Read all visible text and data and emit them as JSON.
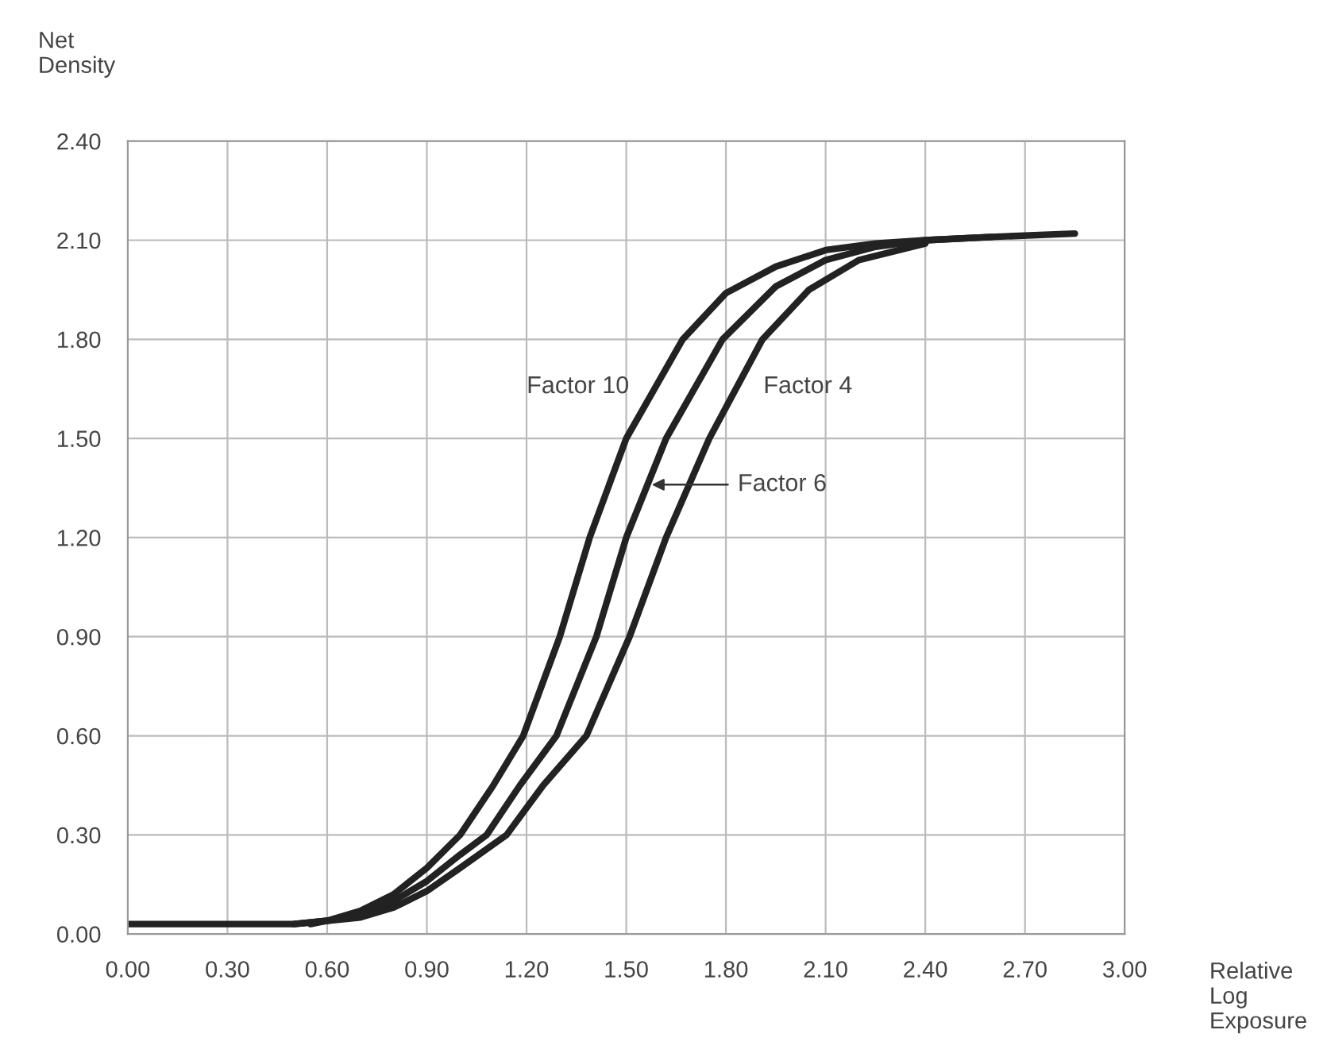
{
  "chart_data": {
    "type": "line",
    "xlabel": "Relative\nLog\nExposure",
    "ylabel": "Net\nDensity",
    "xlim": [
      0,
      3.0
    ],
    "ylim": [
      0,
      2.4
    ],
    "xticks": [
      {
        "value": 0,
        "label": "0.00"
      },
      {
        "value": 0.3,
        "label": "0.30"
      },
      {
        "value": 0.6,
        "label": "0.60"
      },
      {
        "value": 0.9,
        "label": "0.90"
      },
      {
        "value": 1.2,
        "label": "1.20"
      },
      {
        "value": 1.5,
        "label": "1.50"
      },
      {
        "value": 1.8,
        "label": "1.80"
      },
      {
        "value": 2.1,
        "label": "2.10"
      },
      {
        "value": 2.4,
        "label": "2.40"
      },
      {
        "value": 2.7,
        "label": "2.70"
      },
      {
        "value": 3.0,
        "label": "3.00"
      }
    ],
    "yticks": [
      {
        "value": 0,
        "label": "0.00"
      },
      {
        "value": 0.3,
        "label": "0.30"
      },
      {
        "value": 0.6,
        "label": "0.60"
      },
      {
        "value": 0.9,
        "label": "0.90"
      },
      {
        "value": 1.2,
        "label": "1.20"
      },
      {
        "value": 1.5,
        "label": "1.50"
      },
      {
        "value": 1.8,
        "label": "1.80"
      },
      {
        "value": 2.1,
        "label": "2.10"
      },
      {
        "value": 2.4,
        "label": "2.40"
      }
    ],
    "grid": true,
    "legend": false,
    "marker": "none",
    "line_style": "solid",
    "series": [
      {
        "name": "Factor 10",
        "color": "#222222",
        "x": [
          0,
          0.3,
          0.5,
          0.6,
          0.7,
          0.8,
          0.9,
          1.0,
          1.1,
          1.19,
          1.3,
          1.39,
          1.5,
          1.67,
          1.8,
          1.95,
          2.1,
          2.25,
          2.4,
          2.6,
          2.85
        ],
        "values": [
          0.03,
          0.03,
          0.03,
          0.04,
          0.07,
          0.12,
          0.2,
          0.3,
          0.45,
          0.6,
          0.9,
          1.2,
          1.5,
          1.8,
          1.94,
          2.02,
          2.07,
          2.09,
          2.1,
          2.11,
          2.12
        ]
      },
      {
        "color": "#222222",
        "x": [
          0.5,
          0.6,
          0.7,
          0.8,
          0.9,
          1.0,
          1.08,
          1.18,
          1.29,
          1.41,
          1.5,
          1.62,
          1.79,
          1.95,
          2.1,
          2.25,
          2.4,
          2.6
        ],
        "values": [
          0.03,
          0.04,
          0.06,
          0.1,
          0.16,
          0.24,
          0.3,
          0.45,
          0.6,
          0.9,
          1.2,
          1.5,
          1.8,
          1.96,
          2.04,
          2.08,
          2.1,
          2.11
        ]
      },
      {
        "name": "Factor 4",
        "color": "#222222",
        "x": [
          0.55,
          0.6,
          0.7,
          0.8,
          0.9,
          1.0,
          1.14,
          1.25,
          1.38,
          1.51,
          1.62,
          1.75,
          1.91,
          2.05,
          2.2,
          2.4
        ],
        "values": [
          0.03,
          0.04,
          0.05,
          0.08,
          0.13,
          0.2,
          0.3,
          0.45,
          0.6,
          0.9,
          1.2,
          1.5,
          1.8,
          1.95,
          2.04,
          2.09
        ]
      }
    ],
    "annotations": [
      {
        "text": "Factor 6",
        "x": 1.57,
        "y": 1.36
      }
    ]
  }
}
